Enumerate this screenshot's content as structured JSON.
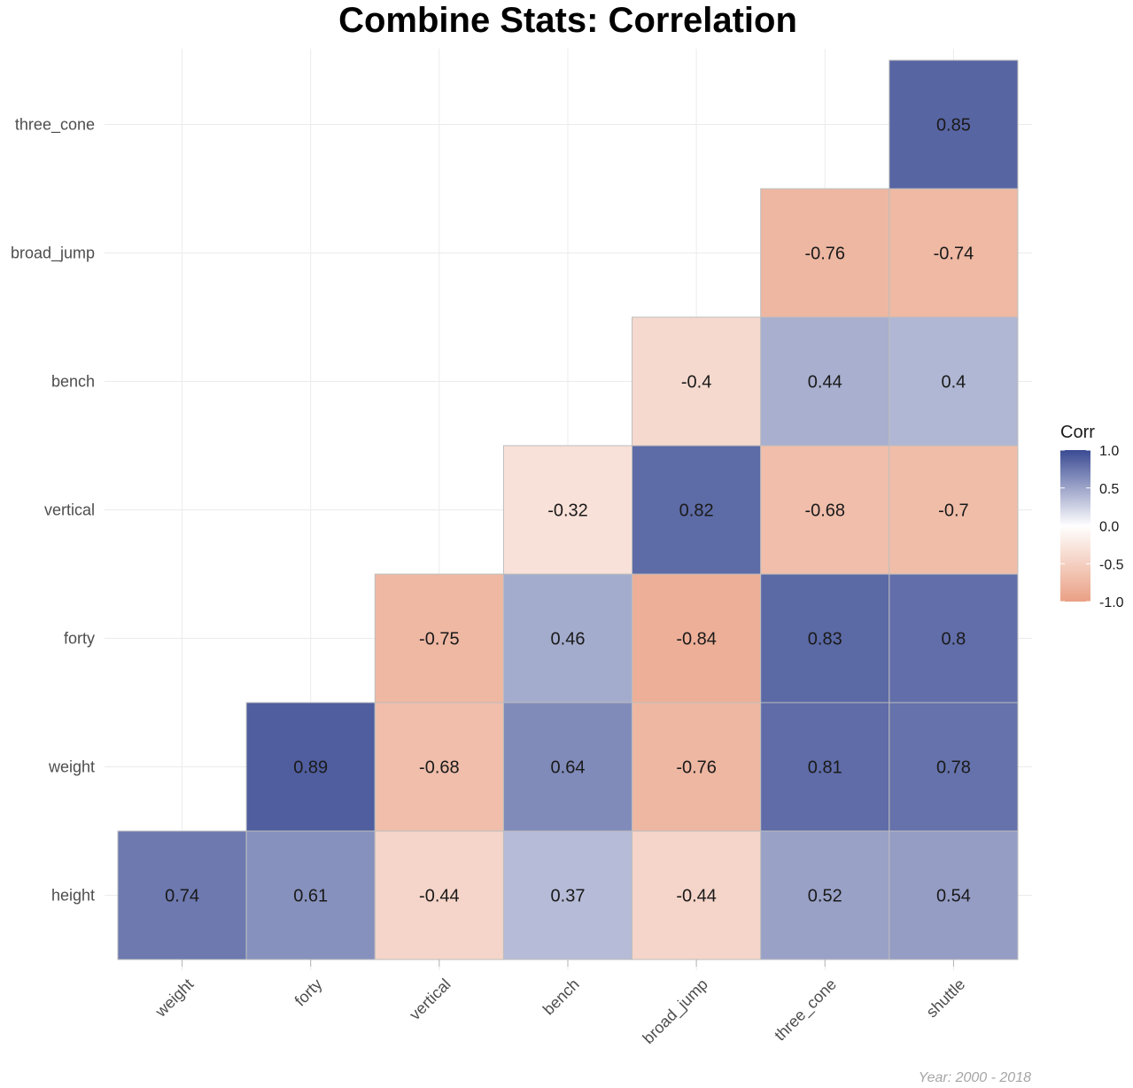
{
  "chart_data": {
    "type": "heatmap",
    "title": "Combine Stats: Correlation",
    "caption": "Year: 2000 - 2018",
    "x_categories": [
      "weight",
      "forty",
      "vertical",
      "bench",
      "broad_jump",
      "three_cone",
      "shuttle"
    ],
    "y_categories": [
      "height",
      "weight",
      "forty",
      "vertical",
      "bench",
      "broad_jump",
      "three_cone"
    ],
    "cells": [
      {
        "x": "weight",
        "y": "height",
        "value": 0.74,
        "label": "0.74"
      },
      {
        "x": "forty",
        "y": "height",
        "value": 0.61,
        "label": "0.61"
      },
      {
        "x": "vertical",
        "y": "height",
        "value": -0.44,
        "label": "-0.44"
      },
      {
        "x": "bench",
        "y": "height",
        "value": 0.37,
        "label": "0.37"
      },
      {
        "x": "broad_jump",
        "y": "height",
        "value": -0.44,
        "label": "-0.44"
      },
      {
        "x": "three_cone",
        "y": "height",
        "value": 0.52,
        "label": "0.52"
      },
      {
        "x": "shuttle",
        "y": "height",
        "value": 0.54,
        "label": "0.54"
      },
      {
        "x": "forty",
        "y": "weight",
        "value": 0.89,
        "label": "0.89"
      },
      {
        "x": "vertical",
        "y": "weight",
        "value": -0.68,
        "label": "-0.68"
      },
      {
        "x": "bench",
        "y": "weight",
        "value": 0.64,
        "label": "0.64"
      },
      {
        "x": "broad_jump",
        "y": "weight",
        "value": -0.76,
        "label": "-0.76"
      },
      {
        "x": "three_cone",
        "y": "weight",
        "value": 0.81,
        "label": "0.81"
      },
      {
        "x": "shuttle",
        "y": "weight",
        "value": 0.78,
        "label": "0.78"
      },
      {
        "x": "vertical",
        "y": "forty",
        "value": -0.75,
        "label": "-0.75"
      },
      {
        "x": "bench",
        "y": "forty",
        "value": 0.46,
        "label": "0.46"
      },
      {
        "x": "broad_jump",
        "y": "forty",
        "value": -0.84,
        "label": "-0.84"
      },
      {
        "x": "three_cone",
        "y": "forty",
        "value": 0.83,
        "label": "0.83"
      },
      {
        "x": "shuttle",
        "y": "forty",
        "value": 0.8,
        "label": "0.8"
      },
      {
        "x": "bench",
        "y": "vertical",
        "value": -0.32,
        "label": "-0.32"
      },
      {
        "x": "broad_jump",
        "y": "vertical",
        "value": 0.82,
        "label": "0.82"
      },
      {
        "x": "three_cone",
        "y": "vertical",
        "value": -0.68,
        "label": "-0.68"
      },
      {
        "x": "shuttle",
        "y": "vertical",
        "value": -0.7,
        "label": "-0.7"
      },
      {
        "x": "broad_jump",
        "y": "bench",
        "value": -0.4,
        "label": "-0.4"
      },
      {
        "x": "three_cone",
        "y": "bench",
        "value": 0.44,
        "label": "0.44"
      },
      {
        "x": "shuttle",
        "y": "bench",
        "value": 0.4,
        "label": "0.4"
      },
      {
        "x": "three_cone",
        "y": "broad_jump",
        "value": -0.76,
        "label": "-0.76"
      },
      {
        "x": "shuttle",
        "y": "broad_jump",
        "value": -0.74,
        "label": "-0.74"
      },
      {
        "x": "shuttle",
        "y": "three_cone",
        "value": 0.85,
        "label": "0.85"
      }
    ],
    "legend": {
      "title": "Corr",
      "placement": "right",
      "range": [
        -1,
        1
      ],
      "ticks": [
        "1.0",
        "0.5",
        "0.0",
        "-0.5",
        "-1.0"
      ],
      "colors": {
        "low": "#E9A084",
        "mid": "#FFFFFF",
        "high": "#3A4A93"
      }
    },
    "grid": true,
    "cell_border_color": "#BDBDBD"
  }
}
